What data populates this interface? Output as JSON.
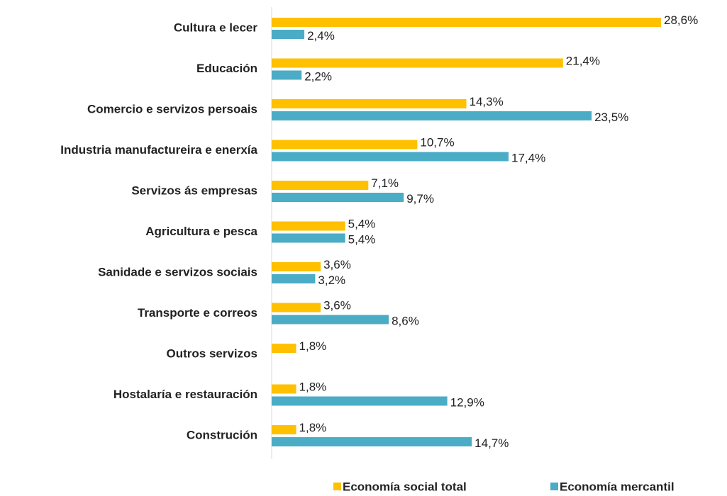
{
  "chart_data": {
    "type": "bar",
    "orientation": "horizontal",
    "categories": [
      "Cultura e lecer",
      "Educación",
      "Comercio e servizos persoais",
      "Industria manufactureira e enerxía",
      "Servizos ás empresas",
      "Agricultura e pesca",
      "Sanidade e servizos sociais",
      "Transporte e correos",
      "Outros servizos",
      "Hostalaría e restauración",
      "Construción"
    ],
    "series": [
      {
        "name": "Economía social total",
        "color": "#FFC000",
        "values": [
          28.6,
          21.4,
          14.3,
          10.7,
          7.1,
          5.4,
          3.6,
          3.6,
          1.8,
          1.8,
          1.8
        ],
        "value_labels": [
          "28,6%",
          "21,4%",
          "14,3%",
          "10,7%",
          "7,1%",
          "5,4%",
          "3,6%",
          "3,6%",
          "1,8%",
          "1,8%",
          "1,8%"
        ]
      },
      {
        "name": "Economía mercantil",
        "color": "#4BACC6",
        "values": [
          2.4,
          2.2,
          23.5,
          17.4,
          9.7,
          5.4,
          3.2,
          8.6,
          null,
          12.9,
          14.7
        ],
        "value_labels": [
          "2,4%",
          "2,2%",
          "23,5%",
          "17,4%",
          "9,7%",
          "5,4%",
          "3,2%",
          "8,6%",
          null,
          "12,9%",
          "14,7%"
        ]
      }
    ],
    "legend": "bottom"
  }
}
